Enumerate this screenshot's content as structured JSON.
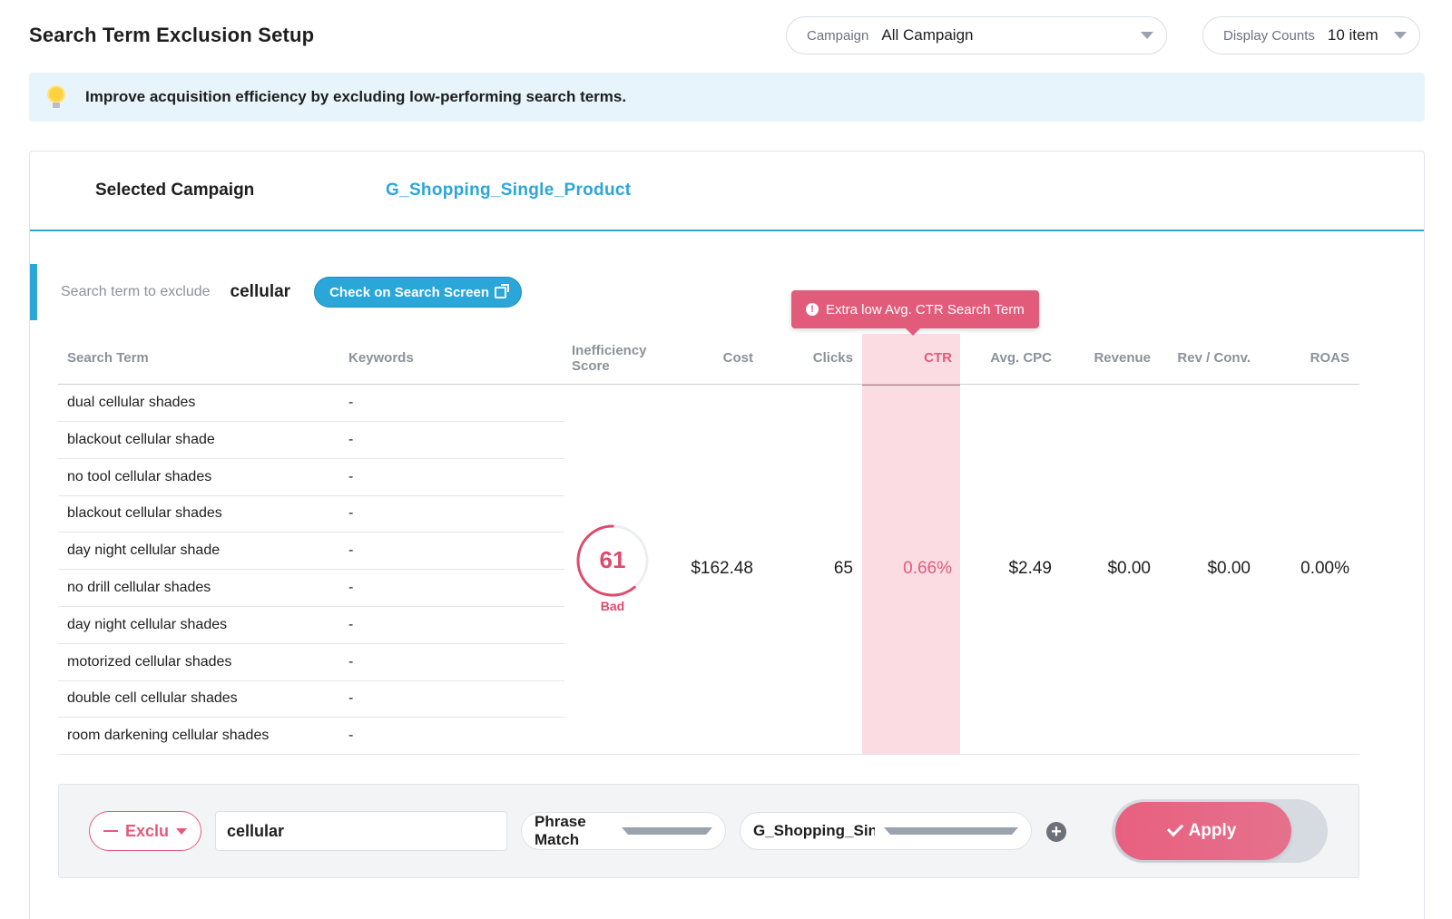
{
  "page": {
    "title": "Search Term Exclusion Setup"
  },
  "campaign_filter": {
    "label": "Campaign",
    "value": "All Campaign"
  },
  "display_counts": {
    "label": "Display Counts",
    "value": "10 item"
  },
  "info_banner": {
    "text": "Improve acquisition efficiency by excluding low-performing search terms.",
    "icon": "lightbulb-icon"
  },
  "selected_campaign": {
    "label": "Selected Campaign",
    "value": "G_Shopping_Single_Product"
  },
  "exclude": {
    "label": "Search term to exclude",
    "value": "cellular",
    "check_button": "Check on Search Screen"
  },
  "tooltip": {
    "text": "Extra low Avg. CTR Search Term"
  },
  "table": {
    "columns": {
      "search_term": "Search Term",
      "keywords": "Keywords",
      "inefficiency_1": "Inefficiency",
      "inefficiency_2": "Score",
      "cost": "Cost",
      "clicks": "Clicks",
      "ctr": "CTR",
      "avg_cpc": "Avg. CPC",
      "revenue": "Revenue",
      "rev_conv": "Rev / Conv.",
      "roas": "ROAS"
    },
    "rows": [
      {
        "term": "dual cellular shades",
        "keyword": "-"
      },
      {
        "term": "blackout cellular shade",
        "keyword": "-"
      },
      {
        "term": "no tool cellular shades",
        "keyword": "-"
      },
      {
        "term": "blackout cellular shades",
        "keyword": "-"
      },
      {
        "term": "day night cellular shade",
        "keyword": "-"
      },
      {
        "term": "no drill cellular shades",
        "keyword": "-"
      },
      {
        "term": "day night cellular shades",
        "keyword": "-"
      },
      {
        "term": "motorized cellular shades",
        "keyword": "-"
      },
      {
        "term": "double cell cellular shades",
        "keyword": "-"
      },
      {
        "term": "room darkening cellular shades",
        "keyword": "-"
      }
    ],
    "score": {
      "value": "61",
      "label": "Bad",
      "fraction": 0.61,
      "color": "#e04a6c"
    },
    "metrics": {
      "cost": "$162.48",
      "clicks": "65",
      "ctr": "0.66%",
      "avg_cpc": "$2.49",
      "revenue": "$0.00",
      "rev_conv": "$0.00",
      "roas": "0.00%"
    }
  },
  "footer": {
    "mode_button": "Exclu",
    "term_input": "cellular",
    "match_type": "Phrase Match",
    "campaign_target": "G_Shopping_Single_Product/Campaign",
    "apply_button": "Apply"
  },
  "colors": {
    "accent": "#2aa6d8",
    "alert": "#e35b7a",
    "ctr_highlight": "#fbdce3"
  }
}
